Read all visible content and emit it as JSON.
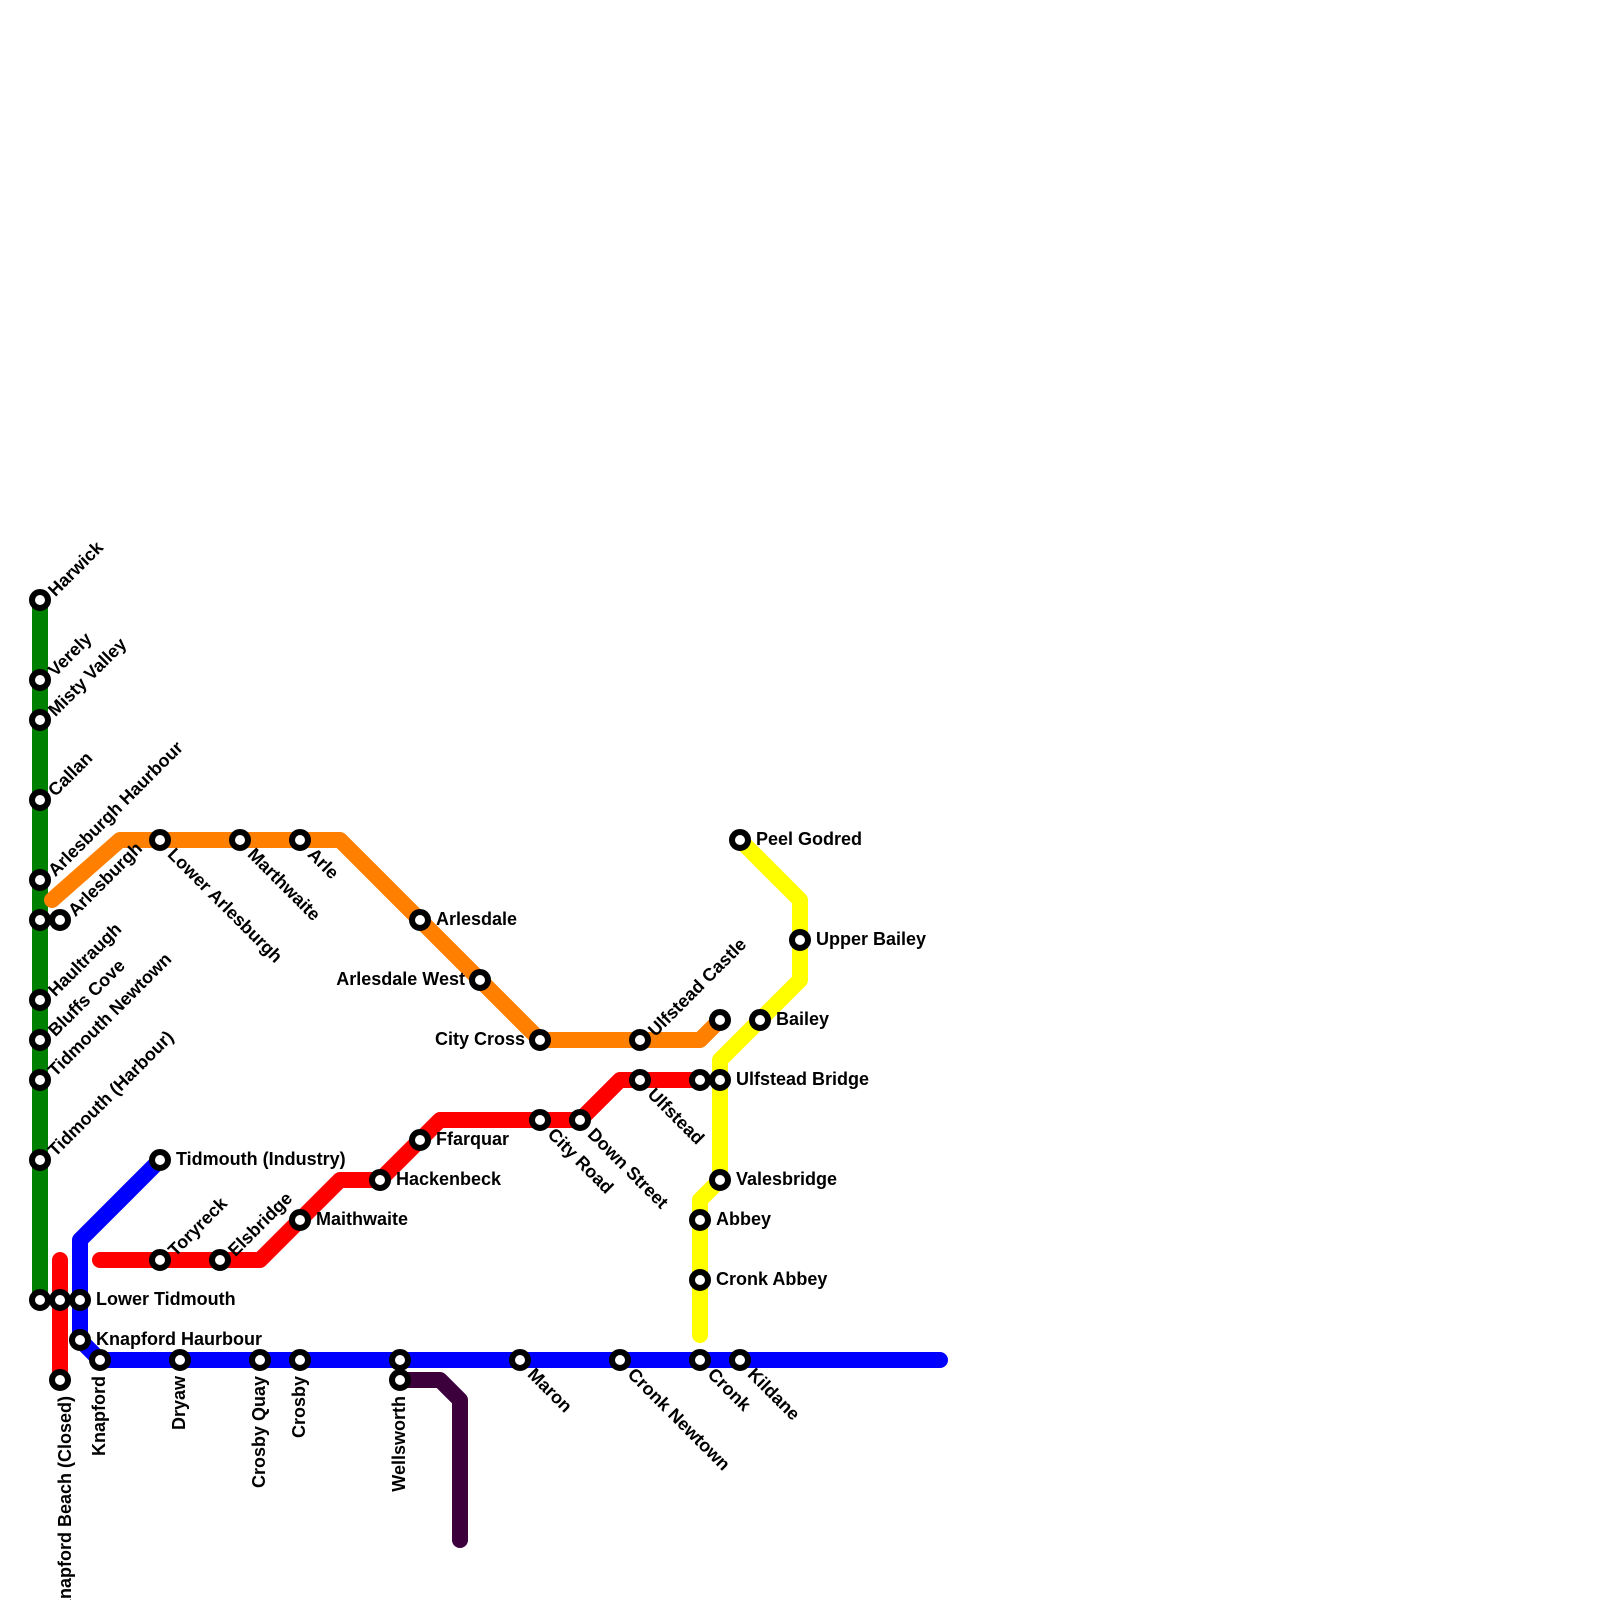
{
  "lines": [
    {
      "id": "green",
      "color": "#008000"
    },
    {
      "id": "orange",
      "color": "#ff8000"
    },
    {
      "id": "red",
      "color": "#ff0000"
    },
    {
      "id": "blue",
      "color": "#0000ff"
    },
    {
      "id": "yellow",
      "color": "#ffff00"
    },
    {
      "id": "purple",
      "color": "#3c003c"
    }
  ],
  "stations": {
    "harwick": "Harwick",
    "verely": "Verely",
    "misty_valley": "Misty Valley",
    "callan": "Callan",
    "arlesburgh_haurbour": "Arlesburgh Haurbour",
    "arlesburgh": "Arlesburgh",
    "haultraugh": "Haultraugh",
    "bluffs_cove": "Bluffs Cove",
    "tidmouth_newtown": "Tidmouth Newtown",
    "tidmouth_harbour": "Tidmouth (Harbour)",
    "lower_arlesburgh": "Lower Arlesburgh",
    "marthwaite": "Marthwaite",
    "arle": "Arle",
    "arlesdale": "Arlesdale",
    "arlesdale_west": "Arlesdale West",
    "city_cross": "City Cross",
    "ulfstead_castle": "Ulfstead Castle",
    "peel_godred": "Peel Godred",
    "upper_bailey": "Upper Bailey",
    "bailey": "Bailey",
    "ulfstead_bridge": "Ulfstead Bridge",
    "ulfstead": "Ulfstead",
    "down_street": "Down Street",
    "city_road": "City Road",
    "ffarquar": "Ffarquar",
    "hackenbeck": "Hackenbeck",
    "maithwaite": "Maithwaite",
    "elsbridge": "Elsbridge",
    "toryreck": "Toryreck",
    "tidmouth_industry": "Tidmouth (Industry)",
    "lower_tidmouth": "Lower Tidmouth",
    "knapford_haurbour": "Knapford Haurbour",
    "knapford": "Knapford",
    "knapford_beach": "Knapford Beach (Closed)",
    "dryaw": "Dryaw",
    "crosby_quay": "Crosby Quay",
    "crosby": "Crosby",
    "wellsworth": "Wellsworth",
    "maron": "Maron",
    "cronk_newtown": "Cronk Newtown",
    "cronk": "Cronk",
    "kildane": "Kildane",
    "valesbridge": "Valesbridge",
    "abbey": "Abbey",
    "cronk_abbey": "Cronk Abbey"
  }
}
